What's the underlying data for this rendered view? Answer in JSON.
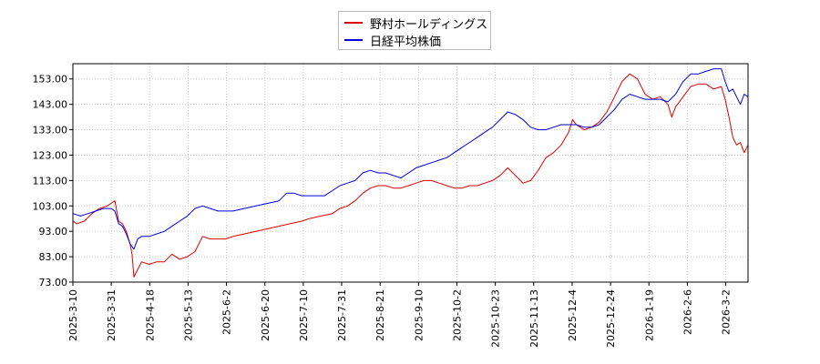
{
  "chart_data": {
    "type": "line",
    "x": [
      "2025-3-10",
      "2025-3-31",
      "2025-4-18",
      "2025-5-13",
      "2025-6-2",
      "2025-6-20",
      "2025-7-10",
      "2025-7-31",
      "2025-8-21",
      "2025-9-10",
      "2025-10-2",
      "2025-10-23",
      "2025-11-13",
      "2025-12-4",
      "2025-12-24",
      "2026-1-19",
      "2026-2-6",
      "2026-3-2"
    ],
    "y_ticks": [
      "73.00",
      "83.00",
      "93.00",
      "103.00",
      "113.00",
      "123.00",
      "133.00",
      "143.00",
      "153.00"
    ],
    "ylim": [
      73,
      159
    ],
    "grid": true,
    "legend_position": "top-center",
    "series": [
      {
        "name": "野村ホールディングス",
        "color": "#dd0000",
        "points": [
          [
            0,
            97
          ],
          [
            1,
            96
          ],
          [
            3,
            97
          ],
          [
            5,
            100
          ],
          [
            7,
            102
          ],
          [
            9,
            103
          ],
          [
            10,
            104
          ],
          [
            11,
            105
          ],
          [
            12,
            97
          ],
          [
            13,
            96
          ],
          [
            14,
            93
          ],
          [
            15,
            88
          ],
          [
            15.5,
            84
          ],
          [
            16,
            75
          ],
          [
            17,
            78
          ],
          [
            18,
            81
          ],
          [
            20,
            80
          ],
          [
            22,
            81
          ],
          [
            24,
            81
          ],
          [
            26,
            84
          ],
          [
            28,
            82
          ],
          [
            30,
            83
          ],
          [
            32,
            85
          ],
          [
            34,
            91
          ],
          [
            36,
            90
          ],
          [
            38,
            90
          ],
          [
            40,
            90
          ],
          [
            42,
            91
          ],
          [
            45,
            92
          ],
          [
            48,
            93
          ],
          [
            51,
            94
          ],
          [
            54,
            95
          ],
          [
            57,
            96
          ],
          [
            60,
            97
          ],
          [
            62,
            98
          ],
          [
            65,
            99
          ],
          [
            68,
            100
          ],
          [
            70,
            102
          ],
          [
            72,
            103
          ],
          [
            74,
            105
          ],
          [
            76,
            108
          ],
          [
            78,
            110
          ],
          [
            80,
            111
          ],
          [
            82,
            111
          ],
          [
            84,
            110
          ],
          [
            86,
            110
          ],
          [
            88,
            111
          ],
          [
            90,
            112
          ],
          [
            92,
            113
          ],
          [
            94,
            113
          ],
          [
            96,
            112
          ],
          [
            98,
            111
          ],
          [
            100,
            110
          ],
          [
            102,
            110
          ],
          [
            104,
            111
          ],
          [
            106,
            111
          ],
          [
            108,
            112
          ],
          [
            110,
            113
          ],
          [
            112,
            115
          ],
          [
            114,
            118
          ],
          [
            116,
            115
          ],
          [
            118,
            112
          ],
          [
            120,
            113
          ],
          [
            122,
            117
          ],
          [
            124,
            122
          ],
          [
            126,
            124
          ],
          [
            128,
            127
          ],
          [
            130,
            132
          ],
          [
            131,
            137
          ],
          [
            132,
            135
          ],
          [
            134,
            133
          ],
          [
            136,
            134
          ],
          [
            138,
            136
          ],
          [
            140,
            140
          ],
          [
            142,
            146
          ],
          [
            144,
            152
          ],
          [
            146,
            155
          ],
          [
            148,
            153
          ],
          [
            150,
            147
          ],
          [
            152,
            145
          ],
          [
            154,
            146
          ],
          [
            156,
            143
          ],
          [
            157,
            138
          ],
          [
            158,
            142
          ],
          [
            160,
            146
          ],
          [
            162,
            150
          ],
          [
            164,
            151
          ],
          [
            166,
            151
          ],
          [
            168,
            149
          ],
          [
            170,
            150
          ],
          [
            171,
            145
          ],
          [
            172,
            138
          ],
          [
            173,
            130
          ],
          [
            174,
            127
          ],
          [
            175,
            128
          ],
          [
            176,
            124
          ],
          [
            177,
            127
          ]
        ]
      },
      {
        "name": "日経平均株価",
        "color": "#0000dd",
        "points": [
          [
            0,
            100
          ],
          [
            2,
            99
          ],
          [
            4,
            100
          ],
          [
            6,
            101
          ],
          [
            8,
            102
          ],
          [
            10,
            102
          ],
          [
            11,
            101
          ],
          [
            12,
            96
          ],
          [
            13,
            95
          ],
          [
            14,
            92
          ],
          [
            15,
            88
          ],
          [
            16,
            86
          ],
          [
            17,
            90
          ],
          [
            18,
            91
          ],
          [
            20,
            91
          ],
          [
            22,
            92
          ],
          [
            24,
            93
          ],
          [
            26,
            95
          ],
          [
            28,
            97
          ],
          [
            30,
            99
          ],
          [
            32,
            102
          ],
          [
            34,
            103
          ],
          [
            36,
            102
          ],
          [
            38,
            101
          ],
          [
            40,
            101
          ],
          [
            42,
            101
          ],
          [
            45,
            102
          ],
          [
            48,
            103
          ],
          [
            51,
            104
          ],
          [
            54,
            105
          ],
          [
            56,
            108
          ],
          [
            58,
            108
          ],
          [
            60,
            107
          ],
          [
            62,
            107
          ],
          [
            64,
            107
          ],
          [
            66,
            107
          ],
          [
            68,
            109
          ],
          [
            70,
            111
          ],
          [
            72,
            112
          ],
          [
            74,
            113
          ],
          [
            76,
            116
          ],
          [
            78,
            117
          ],
          [
            80,
            116
          ],
          [
            82,
            116
          ],
          [
            84,
            115
          ],
          [
            86,
            114
          ],
          [
            88,
            116
          ],
          [
            90,
            118
          ],
          [
            92,
            119
          ],
          [
            94,
            120
          ],
          [
            96,
            121
          ],
          [
            98,
            122
          ],
          [
            100,
            124
          ],
          [
            102,
            126
          ],
          [
            104,
            128
          ],
          [
            106,
            130
          ],
          [
            108,
            132
          ],
          [
            110,
            134
          ],
          [
            112,
            137
          ],
          [
            114,
            140
          ],
          [
            116,
            139
          ],
          [
            118,
            137
          ],
          [
            120,
            134
          ],
          [
            122,
            133
          ],
          [
            124,
            133
          ],
          [
            126,
            134
          ],
          [
            128,
            135
          ],
          [
            130,
            135
          ],
          [
            132,
            135
          ],
          [
            134,
            134
          ],
          [
            136,
            134
          ],
          [
            138,
            135
          ],
          [
            140,
            138
          ],
          [
            142,
            141
          ],
          [
            144,
            145
          ],
          [
            146,
            147
          ],
          [
            148,
            146
          ],
          [
            150,
            145
          ],
          [
            152,
            145
          ],
          [
            154,
            145
          ],
          [
            156,
            144
          ],
          [
            158,
            147
          ],
          [
            160,
            152
          ],
          [
            162,
            155
          ],
          [
            164,
            155
          ],
          [
            166,
            156
          ],
          [
            168,
            157
          ],
          [
            170,
            157
          ],
          [
            171,
            152
          ],
          [
            172,
            148
          ],
          [
            173,
            149
          ],
          [
            174,
            146
          ],
          [
            175,
            143
          ],
          [
            176,
            147
          ],
          [
            177,
            146
          ]
        ]
      }
    ]
  }
}
